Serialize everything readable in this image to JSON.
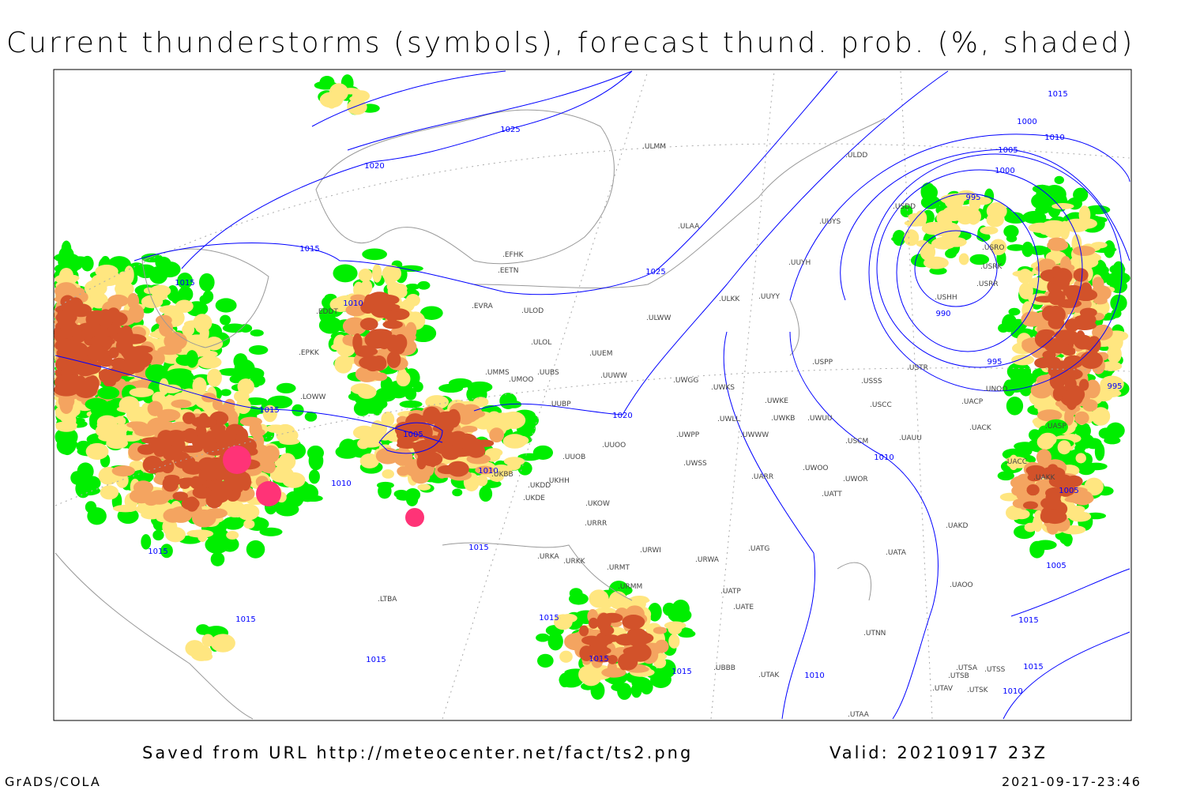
{
  "title": "Current thunderstorms (symbols), forecast thund. prob. (%, shaded)",
  "footer": {
    "source": "Saved from URL http://meteocenter.net/fact/ts2.png",
    "valid": "Valid: 20210917 23Z",
    "software": "GrADS/COLA",
    "timestamp": "2021-09-17-23:46"
  },
  "colors": {
    "isobar": "#0000ff",
    "coastline": "#999999",
    "prob_low": "#00ee00",
    "prob_mid": "#ffe680",
    "prob_high": "#f4a460",
    "prob_very_high": "#d2522a",
    "current_storm": "#ff3377"
  },
  "isobar_labels": [
    "1025",
    "1020",
    "1015",
    "1015",
    "1010",
    "1025",
    "1015",
    "1005",
    "1010",
    "1010",
    "1020",
    "1015",
    "1015",
    "1015",
    "1015",
    "1015",
    "1015",
    "1015",
    "1010",
    "1010",
    "995",
    "990",
    "995",
    "1000",
    "1005",
    "1010",
    "1015",
    "1000",
    "995",
    "1005",
    "1005",
    "1015",
    "1015",
    "1010"
  ],
  "stations": [
    "ULMM",
    "ULDD",
    "ULAA",
    "UUYS",
    "UUYH",
    "ULKK",
    "UUYY",
    "ULWW",
    "EFHK",
    "EETN",
    "EVRA",
    "ULOD",
    "ULOL",
    "UUEM",
    "UUWW",
    "UMMS",
    "UMOO",
    "UUBS",
    "UWGG",
    "UWKS",
    "UUBP",
    "UWKE",
    "UWKB",
    "UWUU",
    "UWLL",
    "UWWW",
    "UWPP",
    "UUOO",
    "UUOB",
    "UWSS",
    "UARR",
    "UWOO",
    "UWOR",
    "USPP",
    "USSS",
    "USCC",
    "USCM",
    "UAUU",
    "USTR",
    "USDD",
    "USRO",
    "USRK",
    "USRR",
    "USHH",
    "UNOO",
    "UACP",
    "UACK",
    "UASP",
    "UACC",
    "UAKK",
    "UATT",
    "UKOW",
    "URRR",
    "UKHH",
    "UKDD",
    "UKDE",
    "UKBB",
    "URWI",
    "URWA",
    "UATG",
    "UATA",
    "UAKD",
    "UATP",
    "UATE",
    "UAOO",
    "URKA",
    "URKK",
    "URMT",
    "URMM",
    "UTNN",
    "UTAK",
    "UTSA",
    "UTSS",
    "UTSB",
    "UTAV",
    "UTSK",
    "UTAA",
    "UBBB",
    "LTBA",
    "EDDT",
    "LOWW",
    "EPKK"
  ]
}
